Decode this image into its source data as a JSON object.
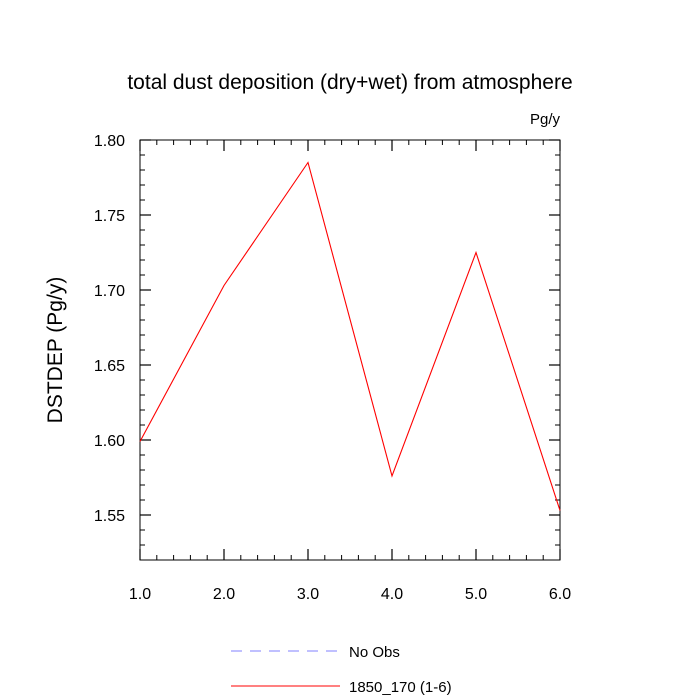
{
  "chart_data": {
    "type": "line",
    "title": "total dust deposition (dry+wet) from atmosphere",
    "units": "Pg/y",
    "ylabel": "DSTDEP  (Pg/y)",
    "xlabel": "",
    "xlim": [
      1.0,
      6.0
    ],
    "ylim": [
      1.52,
      1.8
    ],
    "x_ticks": [
      "1.0",
      "2.0",
      "3.0",
      "4.0",
      "5.0",
      "6.0"
    ],
    "y_ticks": [
      "1.55",
      "1.60",
      "1.65",
      "1.70",
      "1.75",
      "1.80"
    ],
    "grid": false,
    "legend_position": "bottom",
    "series": [
      {
        "name": "1850_170 (1-6)",
        "color": "#ff0000",
        "style": "solid",
        "x": [
          1.0,
          2.0,
          3.0,
          4.0,
          5.0,
          6.0
        ],
        "y": [
          1.599,
          1.703,
          1.785,
          1.576,
          1.725,
          1.553
        ]
      }
    ],
    "legend": [
      {
        "label": "No Obs",
        "color": "#8080ff",
        "style": "dashed"
      },
      {
        "label": "1850_170 (1-6)",
        "color": "#ff0000",
        "style": "solid"
      }
    ]
  }
}
